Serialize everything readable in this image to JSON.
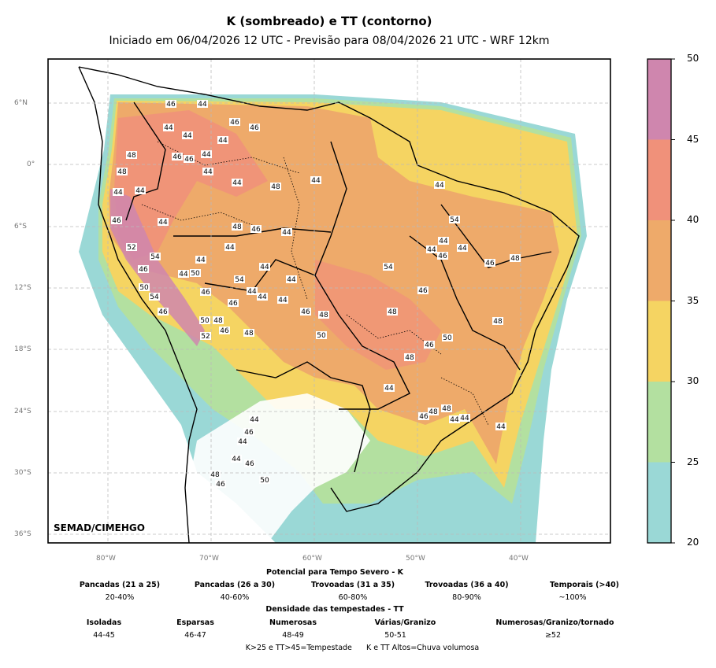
{
  "title": "K (sombreado) e TT (contorno)",
  "subtitle": "Iniciado em 06/04/2026 12 UTC - Previsão para 08/04/2026 21 UTC - WRF 12km",
  "stamp": "SEMAD/CIMEHGO",
  "lat_labels": [
    "6°N",
    "0°",
    "6°S",
    "12°S",
    "18°S",
    "24°S",
    "30°S",
    "36°S"
  ],
  "lon_labels": [
    "80°W",
    "70°W",
    "60°W",
    "50°W",
    "40°W"
  ],
  "colorbar": {
    "ticks": [
      "50",
      "45",
      "40",
      "35",
      "30",
      "25",
      "20"
    ],
    "colors": [
      "#cf86ae",
      "#f0917a",
      "#eeaa6a",
      "#f5d462",
      "#b3e0a0",
      "#9ad8d6"
    ]
  },
  "legend": {
    "k_title": "Potencial para Tempo Severo - K",
    "k_items": [
      {
        "label": "Pancadas (21 a 25)",
        "value": "20-40%"
      },
      {
        "label": "Pancadas (26 a 30)",
        "value": "40-60%"
      },
      {
        "label": "Trovoadas (31 a 35)",
        "value": "60-80%"
      },
      {
        "label": "Trovoadas (36 a 40)",
        "value": "80-90%"
      },
      {
        "label": "Temporais (>40)",
        "value": "~100%"
      }
    ],
    "tt_title": "Densidade das tempestades - TT",
    "tt_items": [
      {
        "label": "Isoladas",
        "value": "44-45"
      },
      {
        "label": "Esparsas",
        "value": "46-47"
      },
      {
        "label": "Numerosas",
        "value": "48-49"
      },
      {
        "label": "Várias/Granizo",
        "value": "50-51"
      },
      {
        "label": "Numerosas/Granizo/tornado",
        "value": "≥52"
      }
    ],
    "footer": "K>25 e TT>45=Tempestade      K e TT Altos=Chuva volumosa"
  },
  "tt_labels": [
    "46",
    "44",
    "46",
    "46",
    "44",
    "44",
    "44",
    "48",
    "46",
    "46",
    "44",
    "48",
    "44",
    "44",
    "48",
    "44",
    "44",
    "44",
    "44",
    "46",
    "44",
    "48",
    "46",
    "44",
    "52",
    "44",
    "54",
    "44",
    "44",
    "46",
    "44",
    "48",
    "46",
    "54",
    "44",
    "44",
    "44",
    "50",
    "46",
    "54",
    "54",
    "44",
    "50",
    "54",
    "46",
    "44",
    "44",
    "44",
    "46",
    "46",
    "46",
    "46",
    "48",
    "48",
    "48",
    "50",
    "48",
    "46",
    "52",
    "48",
    "50",
    "50",
    "46",
    "48",
    "44",
    "46",
    "48",
    "48",
    "44",
    "44",
    "44",
    "44",
    "46",
    "44",
    "44",
    "46",
    "50",
    "48",
    "46"
  ]
}
